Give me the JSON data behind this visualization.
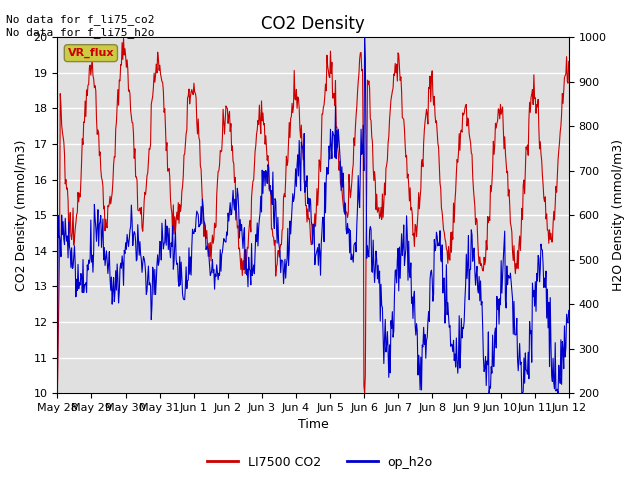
{
  "title": "CO2 Density",
  "xlabel": "Time",
  "ylabel_left": "CO2 Density (mmol/m3)",
  "ylabel_right": "H2O Density (mmol/m3)",
  "annotation_text": "No data for f_li75_co2\nNo data for f_li75_h2o",
  "vr_flux_label": "VR_flux",
  "co2_color": "#cc0000",
  "h2o_color": "#0000cc",
  "background_color": "#e0e0e0",
  "ylim_left": [
    10.0,
    20.0
  ],
  "ylim_right": [
    200,
    1000
  ],
  "legend_labels": [
    "LI7500 CO2",
    "op_h2o"
  ],
  "vr_flux_box_facecolor": "#cccc44",
  "vr_flux_text_color": "#cc0000",
  "vr_flux_box_edgecolor": "#888844",
  "title_fontsize": 12,
  "label_fontsize": 9,
  "tick_fontsize": 8,
  "annot_fontsize": 8,
  "legend_fontsize": 9,
  "figsize": [
    6.4,
    4.8
  ],
  "dpi": 100
}
